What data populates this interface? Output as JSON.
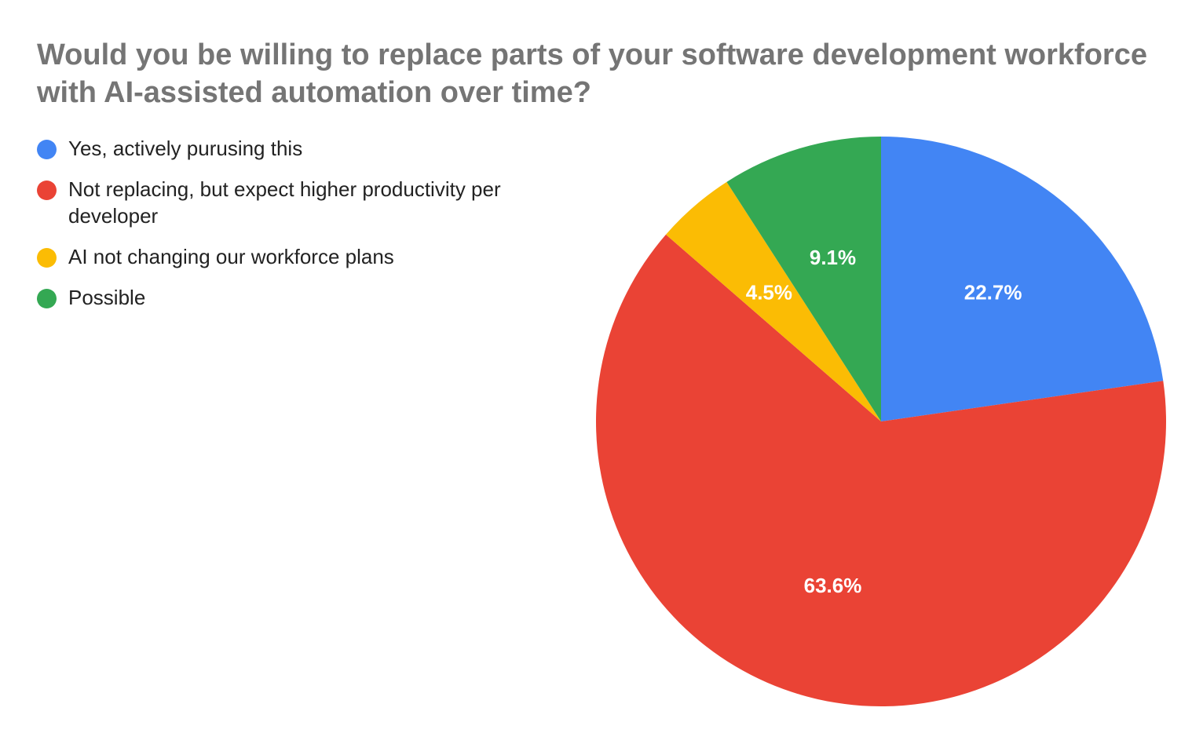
{
  "chart_data": {
    "type": "pie",
    "title": "Would you be willing to replace parts of your software development workforce with AI-assisted automation over time?",
    "legend_position": "left",
    "slices": [
      {
        "label": "Yes, actively purusing this",
        "value": 22.7,
        "display": "22.7%",
        "color": "#4285F4"
      },
      {
        "label": "Not replacing, but expect higher productivity per developer",
        "value": 63.6,
        "display": "63.6%",
        "color": "#EA4335"
      },
      {
        "label": "AI not changing our workforce plans",
        "value": 4.5,
        "display": "4.5%",
        "color": "#FBBC04"
      },
      {
        "label": "Possible",
        "value": 9.1,
        "display": "9.1%",
        "color": "#34A853"
      }
    ]
  }
}
